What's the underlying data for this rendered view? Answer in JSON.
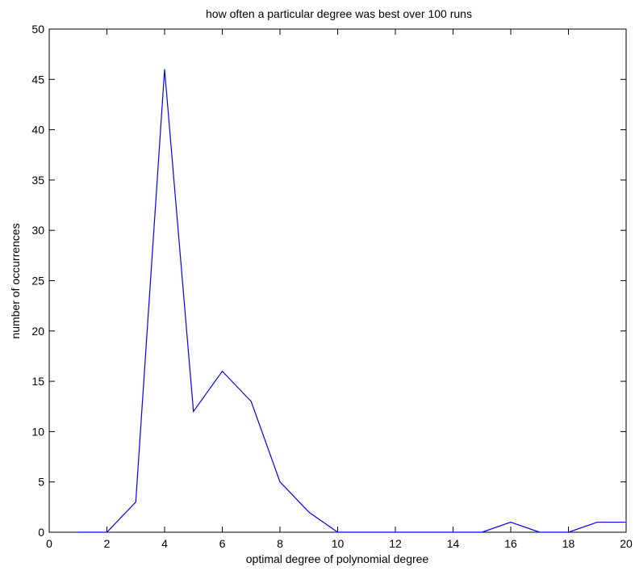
{
  "chart_data": {
    "type": "line",
    "title": "how often a particular degree was best over 100 runs",
    "xlabel": "optimal degree of polynomial degree",
    "ylabel": "number of occurrences",
    "xlim": [
      0,
      20
    ],
    "ylim": [
      0,
      50
    ],
    "xticks": [
      "0",
      "2",
      "4",
      "6",
      "8",
      "10",
      "12",
      "14",
      "16",
      "18",
      "20"
    ],
    "yticks": [
      "0",
      "5",
      "10",
      "15",
      "20",
      "25",
      "30",
      "35",
      "40",
      "45",
      "50"
    ],
    "grid": false,
    "series": [
      {
        "color": "#0000ff",
        "x": [
          1,
          2,
          3,
          4,
          5,
          6,
          7,
          8,
          9,
          10,
          11,
          12,
          13,
          14,
          15,
          16,
          17,
          18,
          19,
          20
        ],
        "y": [
          0,
          0,
          3,
          46,
          12,
          16,
          13,
          5,
          2,
          0,
          0,
          0,
          0,
          0,
          0,
          1,
          0,
          0,
          1,
          1
        ]
      }
    ]
  }
}
